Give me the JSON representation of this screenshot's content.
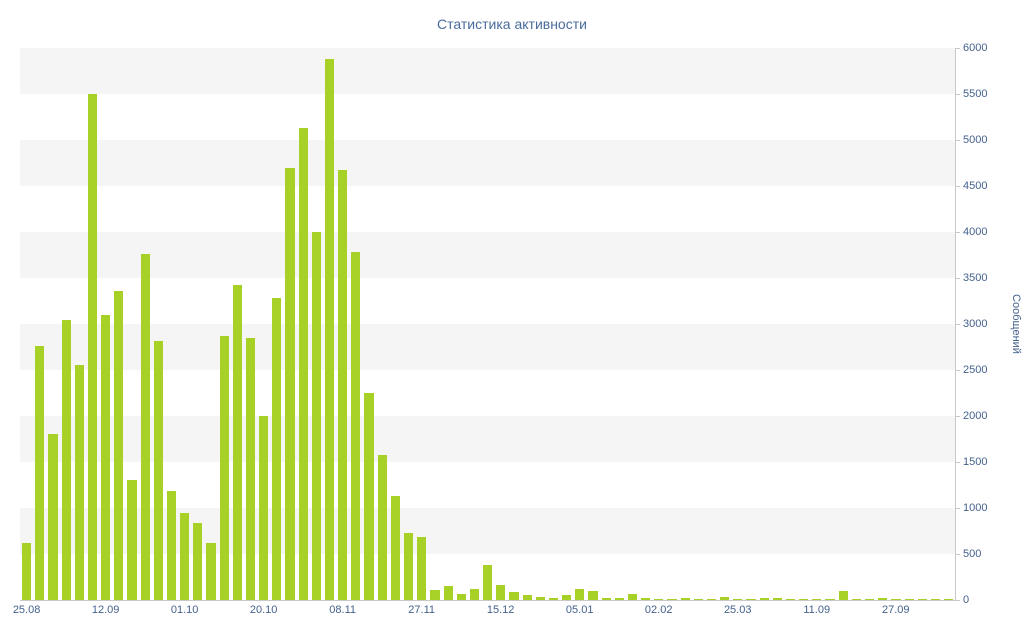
{
  "chart_data": {
    "type": "bar",
    "title": "Статистика активности",
    "xlabel": "",
    "ylabel": "Сообщений",
    "ylim": [
      0,
      6000
    ],
    "ytick_step": 500,
    "legend": "none",
    "grid": "striped-bands",
    "x_tick_labels": [
      "25.08",
      "12.09",
      "01.10",
      "20.10",
      "08.11",
      "27.11",
      "15.12",
      "05.01",
      "02.02",
      "25.03",
      "11.09",
      "27.09"
    ],
    "x_tick_indices": [
      0,
      6,
      12,
      18,
      24,
      30,
      36,
      42,
      48,
      54,
      60,
      66
    ],
    "values": [
      620,
      2760,
      1800,
      3040,
      2550,
      5500,
      3100,
      3360,
      1300,
      3760,
      2820,
      1190,
      950,
      840,
      620,
      2870,
      3420,
      2850,
      2000,
      3280,
      4700,
      5130,
      4000,
      5880,
      4670,
      3780,
      2250,
      1580,
      1130,
      730,
      690,
      110,
      150,
      60,
      120,
      380,
      165,
      90,
      55,
      35,
      25,
      50,
      120,
      100,
      25,
      20,
      60,
      20,
      15,
      10,
      25,
      10,
      10,
      30,
      15,
      10,
      25,
      20,
      10,
      10,
      15,
      10,
      100,
      15,
      10,
      20,
      10,
      10,
      10,
      5,
      10
    ],
    "colors": {
      "bar": "#a8d128",
      "title_text": "#4a6b9c",
      "axis_text": "#44618c",
      "axis_line": "#c8c8c8",
      "stripe": "#f5f5f5"
    }
  }
}
